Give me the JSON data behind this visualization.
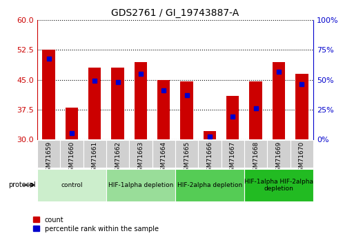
{
  "title": "GDS2761 / GI_19743887-A",
  "samples": [
    "GSM71659",
    "GSM71660",
    "GSM71661",
    "GSM71662",
    "GSM71663",
    "GSM71664",
    "GSM71665",
    "GSM71666",
    "GSM71667",
    "GSM71668",
    "GSM71669",
    "GSM71670"
  ],
  "bar_heights": [
    52.5,
    38.0,
    48.0,
    48.0,
    49.5,
    45.0,
    44.5,
    32.0,
    41.0,
    44.5,
    49.5,
    46.5
  ],
  "bar_base": 30,
  "percentile_values": [
    68,
    5,
    49,
    48,
    55,
    41,
    37,
    2,
    19,
    26,
    57,
    46
  ],
  "bar_color": "#cc0000",
  "pct_color": "#0000cc",
  "ylim_left": [
    30,
    60
  ],
  "ylim_right": [
    0,
    100
  ],
  "left_ticks": [
    30,
    37.5,
    45,
    52.5,
    60
  ],
  "right_ticks": [
    0,
    25,
    50,
    75,
    100
  ],
  "group_info": [
    {
      "label": "control",
      "start": 0,
      "end": 2,
      "color": "#cceecc"
    },
    {
      "label": "HIF-1alpha depletion",
      "start": 3,
      "end": 5,
      "color": "#99dd99"
    },
    {
      "label": "HIF-2alpha depletion",
      "start": 6,
      "end": 8,
      "color": "#55cc55"
    },
    {
      "label": "HIF-1alpha HIF-2alpha\ndepletion",
      "start": 9,
      "end": 11,
      "color": "#22bb22"
    }
  ],
  "bar_color_left": "#cc0000",
  "bar_color_right": "#0000cc",
  "bar_width": 0.55
}
